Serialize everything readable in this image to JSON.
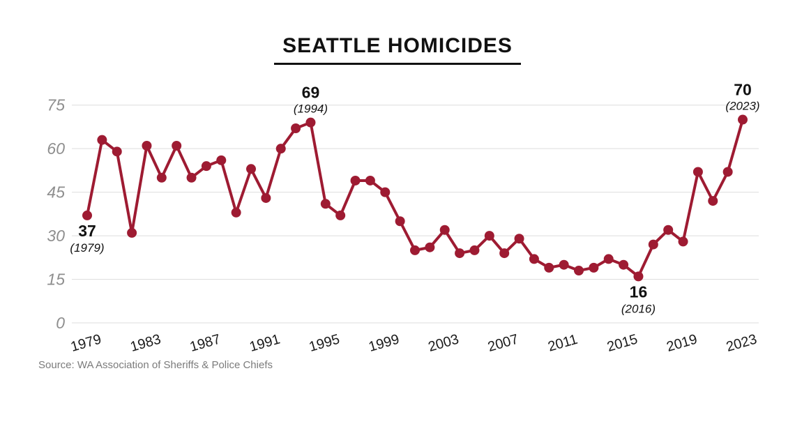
{
  "title": "SEATTLE HOMICIDES",
  "source": "Source: WA Association of Sheriffs & Police Chiefs",
  "colors": {
    "line": "#9e1b32",
    "title_text": "#111111",
    "axis_label": "#8e8e8e",
    "tick_label": "#1a1a1a",
    "gridline": "#dedede",
    "annotation_value": "#111111",
    "background": "#ffffff"
  },
  "chart_data": {
    "type": "line",
    "title": "SEATTLE HOMICIDES",
    "xlabel": "",
    "ylabel": "",
    "ylim": [
      0,
      75
    ],
    "y_ticks": [
      0,
      15,
      30,
      45,
      60,
      75
    ],
    "x_tick_years": [
      1979,
      1983,
      1987,
      1991,
      1995,
      1999,
      2003,
      2007,
      2011,
      2015,
      2019,
      2023
    ],
    "grid": "horizontal",
    "legend": "none",
    "x": [
      1979,
      1980,
      1981,
      1982,
      1983,
      1984,
      1985,
      1986,
      1987,
      1988,
      1989,
      1990,
      1991,
      1992,
      1993,
      1994,
      1995,
      1996,
      1997,
      1998,
      1999,
      2000,
      2001,
      2002,
      2003,
      2004,
      2005,
      2006,
      2007,
      2008,
      2009,
      2010,
      2011,
      2012,
      2013,
      2014,
      2015,
      2016,
      2017,
      2018,
      2019,
      2020,
      2021,
      2022,
      2023
    ],
    "values": [
      37,
      63,
      59,
      31,
      61,
      50,
      61,
      50,
      54,
      56,
      38,
      53,
      43,
      60,
      67,
      69,
      41,
      37,
      49,
      49,
      45,
      35,
      25,
      26,
      32,
      24,
      25,
      30,
      24,
      29,
      22,
      19,
      20,
      18,
      19,
      22,
      20,
      16,
      27,
      32,
      28,
      52,
      42,
      52,
      70
    ],
    "annotations": [
      {
        "year": 1979,
        "value_label": "37",
        "year_label": "(1979)",
        "position": "below"
      },
      {
        "year": 1994,
        "value_label": "69",
        "year_label": "(1994)",
        "position": "above"
      },
      {
        "year": 2016,
        "value_label": "16",
        "year_label": "(2016)",
        "position": "below"
      },
      {
        "year": 2023,
        "value_label": "70",
        "year_label": "(2023)",
        "position": "above"
      }
    ]
  }
}
